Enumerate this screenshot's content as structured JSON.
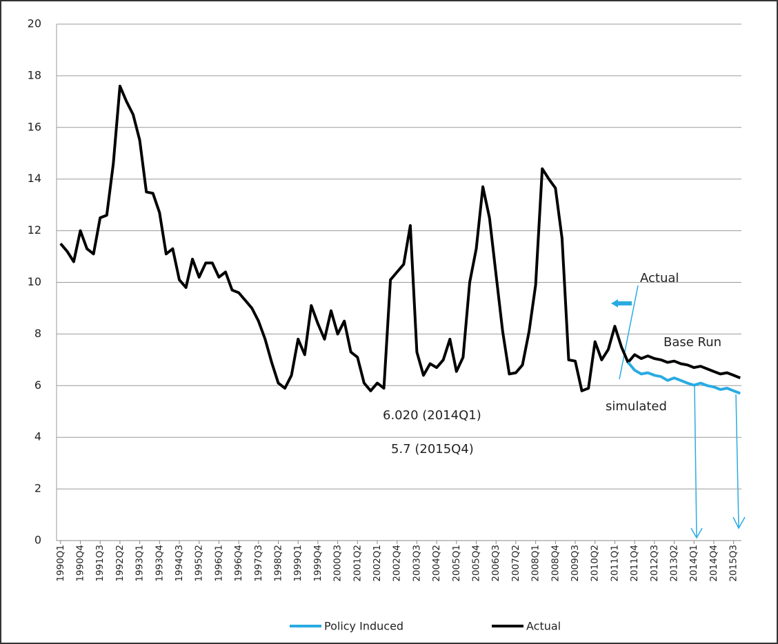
{
  "chart_data": {
    "type": "line",
    "categories": [
      "1990Q1",
      null,
      null,
      "1990Q4",
      null,
      null,
      "1991Q3",
      null,
      null,
      "1992Q2",
      null,
      null,
      "1993Q1",
      null,
      null,
      "1993Q4",
      null,
      null,
      "1994Q3",
      null,
      null,
      "1995Q2",
      null,
      null,
      "1996Q1",
      null,
      null,
      "1996Q4",
      null,
      null,
      "1997Q3",
      null,
      null,
      "1998Q2",
      null,
      null,
      "1999Q1",
      null,
      null,
      "1999Q4",
      null,
      null,
      "2000Q3",
      null,
      null,
      "2001Q2",
      null,
      null,
      "2002Q1",
      null,
      null,
      "2002Q4",
      null,
      null,
      "2003Q3",
      null,
      null,
      "2004Q2",
      null,
      null,
      "2005Q1",
      null,
      null,
      "2005Q4",
      null,
      null,
      "2006Q3",
      null,
      null,
      "2007Q2",
      null,
      null,
      "2008Q1",
      null,
      null,
      "2008Q4",
      null,
      null,
      "2009Q3",
      null,
      null,
      "2010Q2",
      null,
      null,
      "2011Q1",
      null,
      null,
      "2011Q4",
      null,
      null,
      "2012Q3",
      null,
      null,
      "2013Q2",
      null,
      null,
      "2014Q1",
      null,
      null,
      "2014Q4",
      null,
      null,
      "2015Q3",
      null
    ],
    "series": [
      {
        "name": "Policy Induced",
        "color": "#29abe2",
        "values": [
          null,
          null,
          null,
          null,
          null,
          null,
          null,
          null,
          null,
          null,
          null,
          null,
          null,
          null,
          null,
          null,
          null,
          null,
          null,
          null,
          null,
          null,
          null,
          null,
          null,
          null,
          null,
          null,
          null,
          null,
          null,
          null,
          null,
          null,
          null,
          null,
          null,
          null,
          null,
          null,
          null,
          null,
          null,
          null,
          null,
          null,
          null,
          null,
          null,
          null,
          null,
          null,
          null,
          null,
          null,
          null,
          null,
          null,
          null,
          null,
          null,
          null,
          null,
          null,
          null,
          null,
          null,
          null,
          null,
          null,
          null,
          null,
          null,
          null,
          null,
          null,
          null,
          null,
          null,
          null,
          null,
          null,
          null,
          null,
          null,
          null,
          6.9,
          6.6,
          6.45,
          6.5,
          6.4,
          6.35,
          6.2,
          6.3,
          6.2,
          6.1,
          6.02,
          6.1,
          6.0,
          5.95,
          5.85,
          5.9,
          5.8,
          5.7
        ]
      },
      {
        "name": "Actual",
        "color": "#000000",
        "values": [
          11.5,
          11.2,
          10.8,
          12.0,
          11.3,
          11.1,
          12.5,
          12.6,
          14.6,
          17.6,
          17.0,
          16.5,
          15.5,
          13.5,
          13.45,
          12.7,
          11.1,
          11.3,
          10.1,
          9.8,
          10.9,
          10.2,
          10.75,
          10.75,
          10.2,
          10.4,
          9.7,
          9.6,
          9.3,
          9.0,
          8.5,
          7.8,
          6.9,
          6.1,
          5.9,
          6.4,
          7.8,
          7.2,
          9.1,
          8.4,
          7.8,
          8.9,
          8.0,
          8.5,
          7.3,
          7.1,
          6.1,
          5.8,
          6.1,
          5.9,
          10.1,
          10.4,
          10.7,
          12.2,
          7.3,
          6.4,
          6.85,
          6.7,
          7.0,
          7.8,
          6.55,
          7.1,
          10.0,
          11.3,
          13.7,
          12.5,
          10.3,
          8.1,
          6.45,
          6.5,
          6.8,
          8.1,
          9.9,
          14.4,
          14.0,
          13.65,
          11.7,
          7.0,
          6.95,
          5.8,
          5.9,
          7.7,
          7.0,
          7.4,
          8.3,
          7.5,
          6.9,
          7.2,
          7.05,
          7.15,
          7.05,
          7.0,
          6.9,
          6.95,
          6.85,
          6.8,
          6.7,
          6.75,
          6.65,
          6.55,
          6.45,
          6.5,
          6.4,
          6.3
        ]
      }
    ],
    "ylim": [
      0,
      20
    ],
    "yticks": [
      0,
      2,
      4,
      6,
      8,
      10,
      12,
      14,
      16,
      18,
      20
    ],
    "grid": true,
    "annotations": [
      "Actual",
      "Base Run",
      "simulated",
      "6.020 (2014Q1)",
      "5.7 (2015Q4)"
    ]
  }
}
